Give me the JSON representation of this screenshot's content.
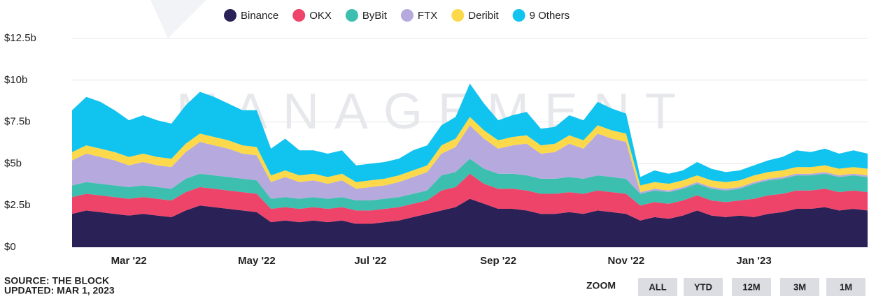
{
  "chart_data": {
    "type": "stacked_area",
    "watermark": "MANAGEMENT",
    "categories": [
      null,
      null,
      null,
      null,
      "Mar '22",
      null,
      null,
      null,
      null,
      null,
      null,
      null,
      null,
      "May '22",
      null,
      null,
      null,
      null,
      null,
      null,
      null,
      "Jul '22",
      null,
      null,
      null,
      null,
      null,
      null,
      null,
      null,
      "Sep '22",
      null,
      null,
      null,
      null,
      null,
      null,
      null,
      null,
      "Nov '22",
      null,
      null,
      null,
      null,
      null,
      null,
      null,
      null,
      "Jan '23",
      null,
      null,
      null,
      null,
      null,
      null,
      null,
      null
    ],
    "series": [
      {
        "name": "Binance",
        "color": "#2a2157",
        "values": [
          2.0,
          2.2,
          2.1,
          2.0,
          1.9,
          2.0,
          1.9,
          1.8,
          2.2,
          2.5,
          2.4,
          2.3,
          2.2,
          2.1,
          1.5,
          1.6,
          1.5,
          1.6,
          1.5,
          1.6,
          1.4,
          1.4,
          1.5,
          1.6,
          1.8,
          2.0,
          2.2,
          2.4,
          2.9,
          2.6,
          2.3,
          2.3,
          2.2,
          2.0,
          2.0,
          2.1,
          2.0,
          2.2,
          2.1,
          2.0,
          1.6,
          1.8,
          1.7,
          1.9,
          2.2,
          1.9,
          1.8,
          1.9,
          1.8,
          2.0,
          2.1,
          2.3,
          2.3,
          2.4,
          2.2,
          2.3,
          2.2
        ]
      },
      {
        "name": "OKX",
        "color": "#ef4469",
        "values": [
          1.0,
          1.0,
          1.0,
          1.0,
          1.0,
          1.0,
          1.0,
          1.0,
          1.1,
          1.1,
          1.1,
          1.1,
          1.1,
          1.1,
          0.8,
          0.8,
          0.8,
          0.8,
          0.8,
          0.8,
          0.8,
          0.8,
          0.8,
          0.8,
          0.8,
          0.8,
          1.2,
          1.2,
          1.5,
          1.2,
          1.2,
          1.2,
          1.2,
          1.2,
          1.2,
          1.2,
          1.2,
          1.2,
          1.2,
          1.2,
          0.9,
          0.9,
          0.9,
          0.9,
          0.9,
          0.9,
          0.9,
          0.9,
          1.1,
          1.1,
          1.1,
          1.1,
          1.1,
          1.1,
          1.1,
          1.1,
          1.1
        ]
      },
      {
        "name": "ByBit",
        "color": "#3cbfae",
        "values": [
          0.7,
          0.7,
          0.7,
          0.7,
          0.7,
          0.7,
          0.7,
          0.7,
          0.8,
          0.8,
          0.8,
          0.8,
          0.8,
          0.8,
          0.6,
          0.6,
          0.6,
          0.6,
          0.6,
          0.6,
          0.6,
          0.6,
          0.6,
          0.6,
          0.6,
          0.6,
          0.9,
          0.9,
          0.9,
          0.9,
          0.9,
          0.9,
          0.9,
          0.9,
          0.9,
          0.9,
          0.9,
          0.9,
          0.9,
          0.9,
          0.7,
          0.7,
          0.7,
          0.7,
          0.7,
          0.7,
          0.7,
          0.7,
          0.9,
          0.9,
          0.9,
          0.9,
          0.9,
          0.9,
          0.9,
          0.9,
          0.9
        ]
      },
      {
        "name": "FTX",
        "color": "#b6a9de",
        "values": [
          1.5,
          1.7,
          1.6,
          1.5,
          1.3,
          1.4,
          1.3,
          1.3,
          1.6,
          1.9,
          1.8,
          1.7,
          1.5,
          1.5,
          1.0,
          1.2,
          1.0,
          1.0,
          0.9,
          1.0,
          0.7,
          0.8,
          0.8,
          0.9,
          1.0,
          1.1,
          1.3,
          1.5,
          2.0,
          1.8,
          1.5,
          1.7,
          1.9,
          1.5,
          1.6,
          2.0,
          1.8,
          2.5,
          2.3,
          2.2,
          0.1,
          0.1,
          0.1,
          0.1,
          0.1,
          0.1,
          0.1,
          0.1,
          0.1,
          0.1,
          0.1,
          0.1,
          0.1,
          0.1,
          0.1,
          0.1,
          0.1
        ]
      },
      {
        "name": "Deribit",
        "color": "#fcd94a",
        "values": [
          0.5,
          0.5,
          0.5,
          0.5,
          0.5,
          0.5,
          0.5,
          0.5,
          0.5,
          0.5,
          0.5,
          0.5,
          0.5,
          0.5,
          0.4,
          0.4,
          0.4,
          0.4,
          0.4,
          0.4,
          0.4,
          0.4,
          0.4,
          0.4,
          0.4,
          0.4,
          0.5,
          0.5,
          0.5,
          0.5,
          0.5,
          0.5,
          0.5,
          0.5,
          0.5,
          0.5,
          0.5,
          0.5,
          0.5,
          0.5,
          0.4,
          0.4,
          0.4,
          0.4,
          0.4,
          0.4,
          0.4,
          0.4,
          0.4,
          0.4,
          0.4,
          0.4,
          0.4,
          0.4,
          0.4,
          0.4,
          0.4
        ]
      },
      {
        "name": "9 Others",
        "color": "#11c3ef",
        "values": [
          2.5,
          2.9,
          2.8,
          2.5,
          2.2,
          2.3,
          2.2,
          2.1,
          2.3,
          2.5,
          2.4,
          2.2,
          2.1,
          2.2,
          1.6,
          1.9,
          1.5,
          1.4,
          1.4,
          1.4,
          1.0,
          1.0,
          1.0,
          1.0,
          1.2,
          1.2,
          1.2,
          1.3,
          2.0,
          1.6,
          1.2,
          1.3,
          1.4,
          1.0,
          1.0,
          1.2,
          1.2,
          1.4,
          1.3,
          1.2,
          0.5,
          0.7,
          0.6,
          0.6,
          0.8,
          0.7,
          0.6,
          0.6,
          0.6,
          0.7,
          0.8,
          1.0,
          0.9,
          1.0,
          0.9,
          1.0,
          0.9
        ]
      }
    ],
    "ylim": [
      0,
      12.5
    ],
    "yticks": [
      {
        "value": 0,
        "label": "$0"
      },
      {
        "value": 2.5,
        "label": "$2.5b"
      },
      {
        "value": 5,
        "label": "$5b"
      },
      {
        "value": 7.5,
        "label": "$7.5b"
      },
      {
        "value": 10,
        "label": "$10b"
      },
      {
        "value": 12.5,
        "label": "$12.5b"
      }
    ],
    "grid": true,
    "legend": "top"
  },
  "footer": {
    "source": "SOURCE: THE BLOCK",
    "updated": "UPDATED: MAR 1, 2023",
    "zoom": "ZOOM",
    "buttons": [
      "ALL",
      "YTD",
      "12M",
      "3M",
      "1M"
    ]
  }
}
